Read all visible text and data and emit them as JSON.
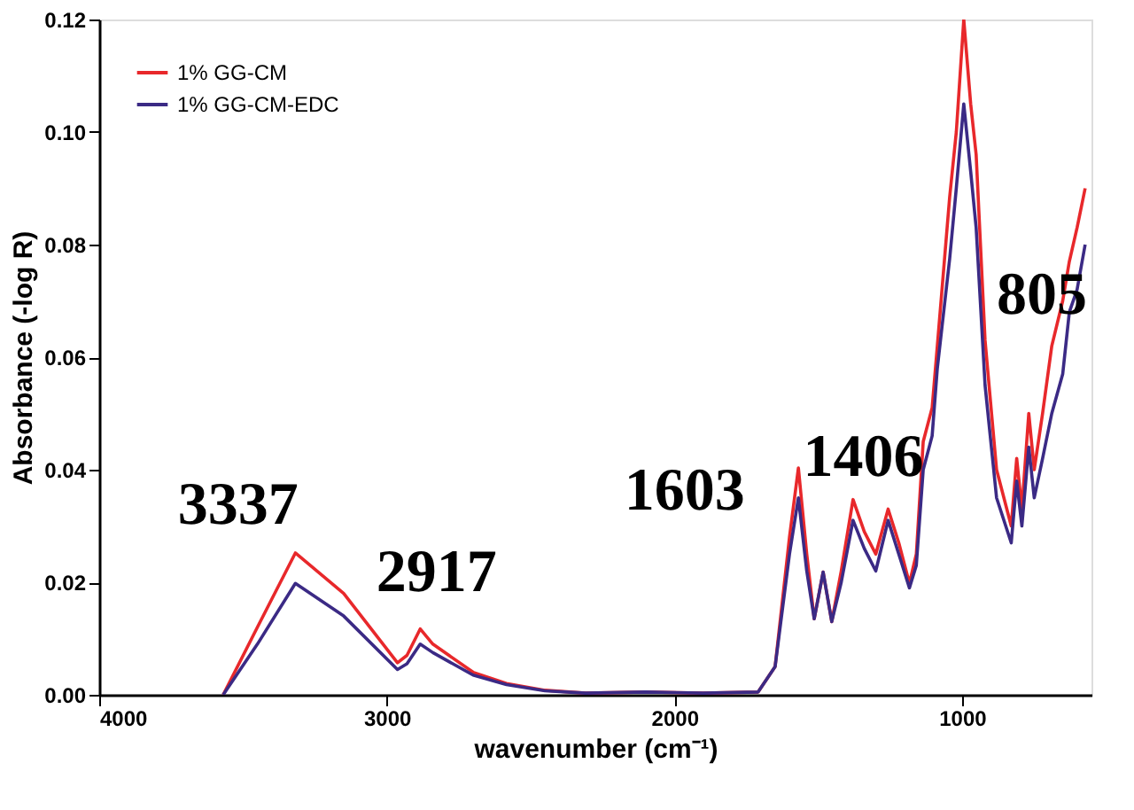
{
  "chart_data": {
    "type": "line",
    "xlabel": "wavenumber (cm⁻¹)",
    "ylabel": "Absorbance (-log R)",
    "x": [
      3569,
      3450,
      3318,
      3150,
      2963,
      2930,
      2884,
      2840,
      2700,
      2584,
      2450,
      2309,
      2100,
      1900,
      1709,
      1650,
      1600,
      1569,
      1540,
      1514,
      1483,
      1453,
      1420,
      1379,
      1340,
      1300,
      1257,
      1220,
      1183,
      1159,
      1135,
      1104,
      1086,
      1043,
      1020,
      994,
      970,
      951,
      920,
      880,
      829,
      810,
      792,
      768,
      749,
      720,
      688,
      650,
      627,
      600,
      572
    ],
    "series": [
      {
        "name": "1% GG-CM",
        "color": "#e8282b",
        "values": [
          0,
          0.012,
          0.0252,
          0.018,
          0.0057,
          0.007,
          0.0117,
          0.009,
          0.004,
          0.002,
          0.0008,
          0.0003,
          0.0005,
          0.0003,
          0.0005,
          0.005,
          0.028,
          0.0403,
          0.025,
          0.0135,
          0.0218,
          0.013,
          0.022,
          0.0347,
          0.029,
          0.025,
          0.033,
          0.027,
          0.0198,
          0.025,
          0.045,
          0.051,
          0.062,
          0.0885,
          0.1,
          0.12,
          0.105,
          0.096,
          0.063,
          0.04,
          0.03,
          0.042,
          0.033,
          0.05,
          0.04,
          0.05,
          0.062,
          0.07,
          0.077,
          0.083,
          0.09
        ]
      },
      {
        "name": "1% GG-CM-EDC",
        "color": "#3b2a85",
        "values": [
          0,
          0.009,
          0.0198,
          0.014,
          0.0045,
          0.0055,
          0.009,
          0.0075,
          0.0035,
          0.0018,
          0.0007,
          0.0003,
          0.0005,
          0.0003,
          0.0005,
          0.005,
          0.025,
          0.035,
          0.022,
          0.0135,
          0.0218,
          0.013,
          0.02,
          0.031,
          0.026,
          0.022,
          0.031,
          0.025,
          0.019,
          0.023,
          0.04,
          0.046,
          0.058,
          0.0775,
          0.09,
          0.105,
          0.093,
          0.083,
          0.055,
          0.035,
          0.027,
          0.038,
          0.03,
          0.044,
          0.035,
          0.042,
          0.05,
          0.057,
          0.068,
          0.072,
          0.08
        ]
      }
    ],
    "xlim": [
      4000,
      550
    ],
    "xticks": [
      4000,
      3000,
      2000,
      1000
    ],
    "ylim": [
      0,
      0.12
    ],
    "yticks": [
      {
        "value": 0,
        "label": "0.00"
      },
      {
        "value": 0.02,
        "label": "0.02"
      },
      {
        "value": 0.04,
        "label": "0.04"
      },
      {
        "value": 0.06,
        "label": "0.06"
      },
      {
        "value": 0.08,
        "label": "0.08"
      },
      {
        "value": 0.1,
        "label": "0.10"
      },
      {
        "value": 0.12,
        "label": "0.12"
      }
    ],
    "annotations": [
      "3337",
      "2917",
      "1603",
      "1406",
      "805"
    ],
    "grid": false,
    "legend": "top left",
    "marker": "none",
    "line_style": "solid"
  }
}
